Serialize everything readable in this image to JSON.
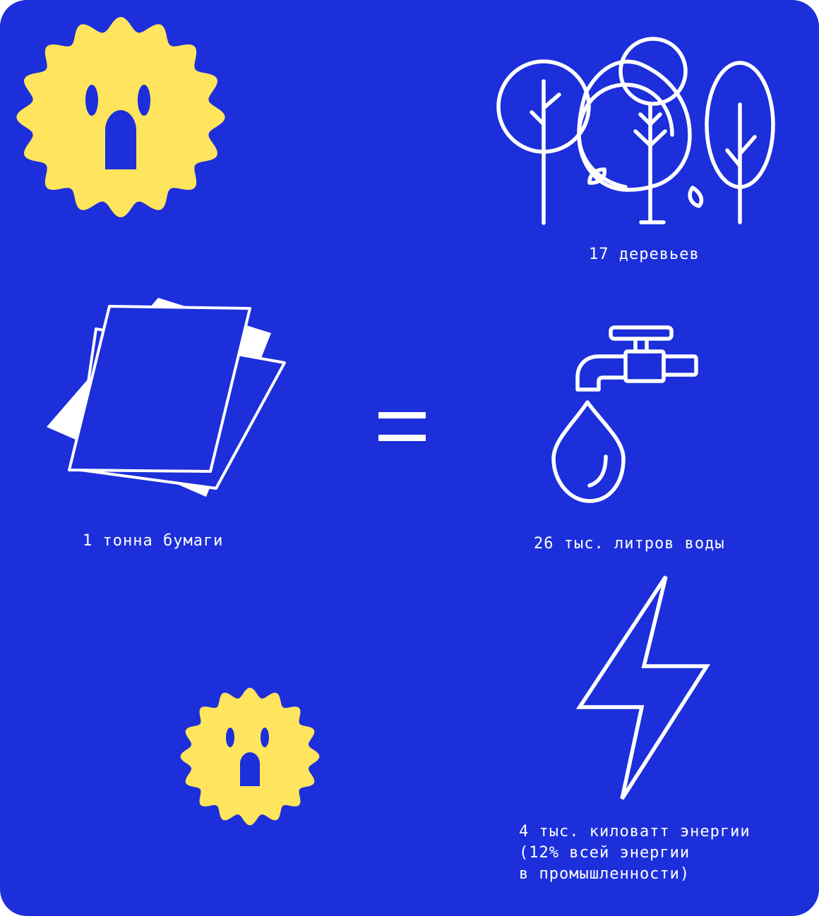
{
  "colors": {
    "background": "#1C2FDA",
    "accent_yellow": "#FFE45E",
    "line_white": "#FFFFFF"
  },
  "equation": {
    "sign": "="
  },
  "source": {
    "icon": "paper-stack-icon",
    "label": "1 тонна бумаги"
  },
  "results": [
    {
      "icon": "trees-icon",
      "label": "17 деревьев"
    },
    {
      "icon": "water-tap-icon",
      "label": "26 тыс. литров воды"
    },
    {
      "icon": "lightning-icon",
      "label": "4 тыс. киловатт энергии\n(12% всей энергии\nв промышленности)"
    }
  ],
  "decorations": [
    {
      "icon": "surprised-sun-icon",
      "size": "large"
    },
    {
      "icon": "surprised-sun-icon",
      "size": "small"
    }
  ]
}
